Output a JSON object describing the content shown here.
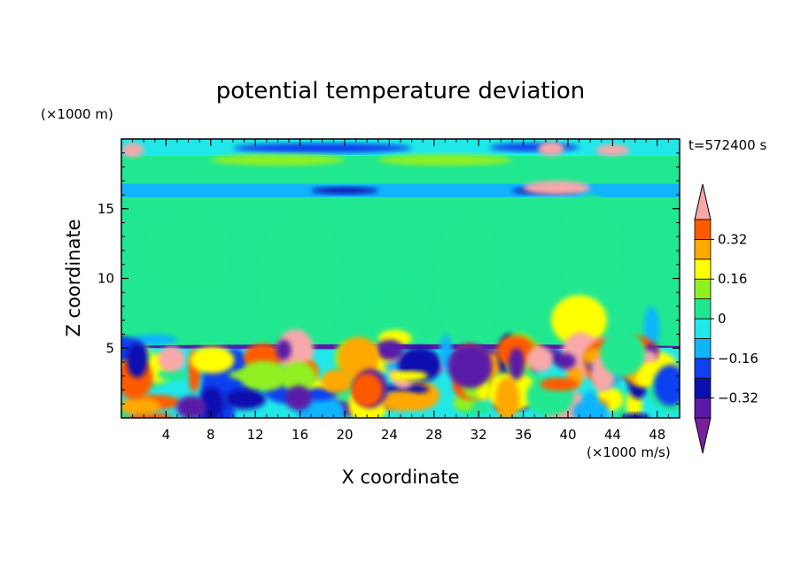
{
  "chart_data": {
    "type": "heatmap",
    "title": "potential temperature deviation",
    "xlabel": "X coordinate",
    "ylabel": "Z coordinate",
    "x_unit": "(×1000 m/s)",
    "y_unit": "(×1000 m)",
    "time_label": "t=572400 s",
    "xlim": [
      0,
      50
    ],
    "ylim": [
      0,
      20
    ],
    "x_ticks": [
      4,
      8,
      12,
      16,
      20,
      24,
      28,
      32,
      36,
      40,
      44,
      48
    ],
    "y_ticks": [
      5,
      10,
      15
    ],
    "colorbar": {
      "levels": [
        -0.4,
        -0.32,
        -0.24,
        -0.16,
        -0.08,
        0,
        0.08,
        0.16,
        0.24,
        0.32,
        0.4
      ],
      "colors": [
        "#7a1fa0",
        "#5a1aa8",
        "#0a10b0",
        "#1040f0",
        "#10b4ff",
        "#20e8e8",
        "#20e890",
        "#90f020",
        "#ffff00",
        "#ffa800",
        "#ff5a00",
        "#f02020",
        "#f8a8a8"
      ],
      "tick_labels": [
        "0.32",
        "0.16",
        "0",
        "−0.16",
        "−0.32"
      ],
      "tick_values": [
        0.32,
        0.16,
        0,
        -0.16,
        -0.32
      ],
      "extend": "both"
    },
    "field_bands": [
      {
        "z": [
          18.8,
          20.0
        ],
        "value": -0.06
      },
      {
        "z": [
          18.0,
          18.8
        ],
        "value": 0.02
      },
      {
        "z": [
          16.8,
          18.0
        ],
        "value": 0.05
      },
      {
        "z": [
          15.8,
          16.8
        ],
        "value": -0.1
      },
      {
        "z": [
          5.1,
          15.8
        ],
        "value": 0.04
      },
      {
        "z": [
          0.0,
          5.1
        ],
        "value": -0.05
      }
    ]
  }
}
